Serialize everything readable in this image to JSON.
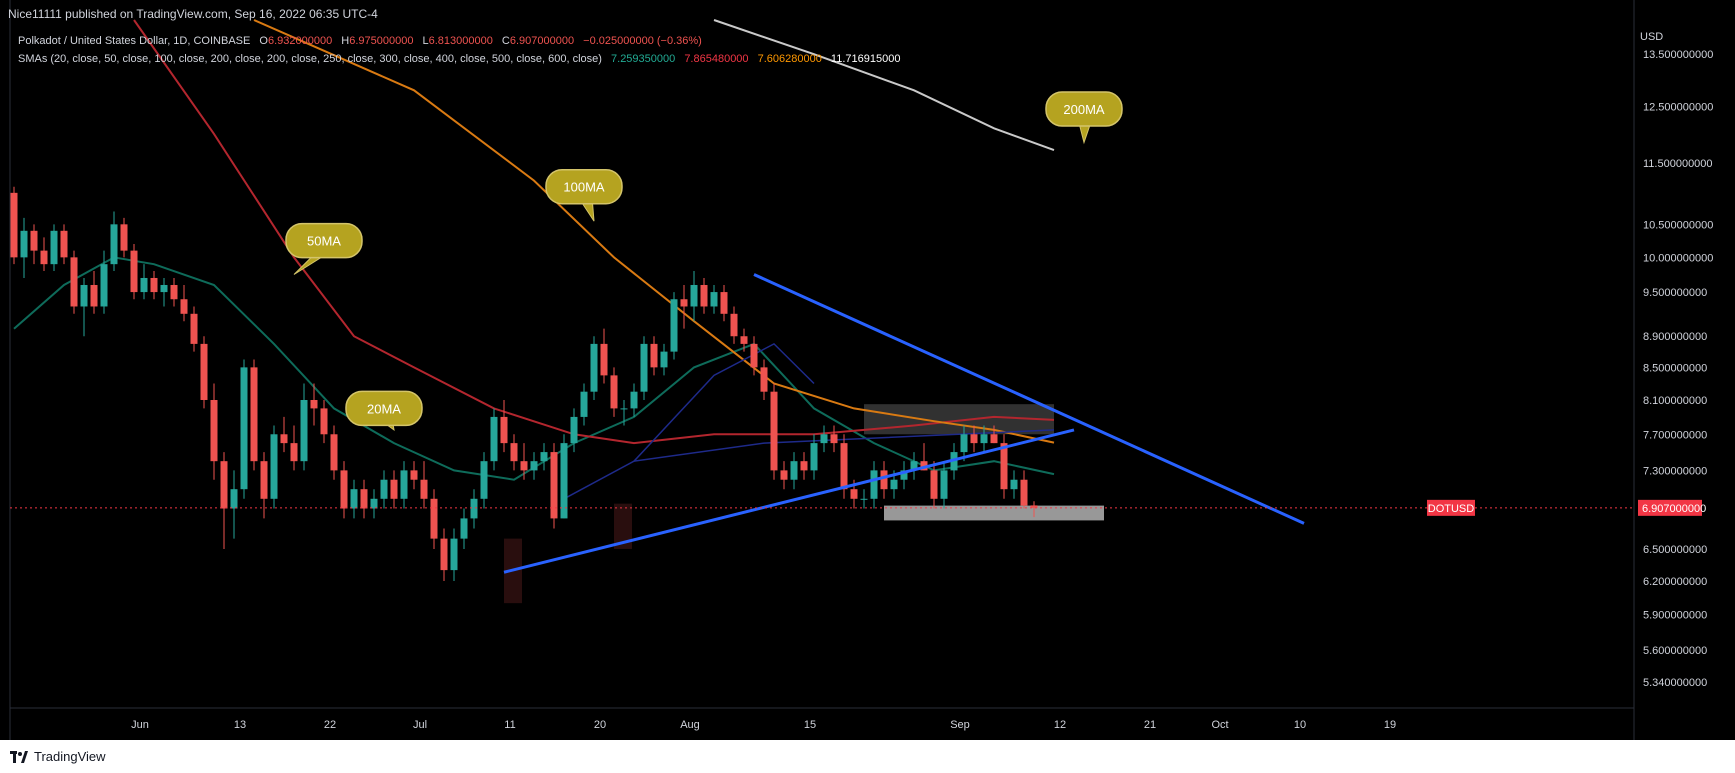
{
  "header": {
    "published": "Nice11111 published on TradingView.com, Sep 16, 2022 06:35 UTC-4",
    "symbol_title": "Polkadot / United States Dollar, 1D, COINBASE",
    "ohlc": {
      "o_label": "O",
      "o": "6.932000000",
      "h_label": "H",
      "h": "6.975000000",
      "l_label": "L",
      "l": "6.813000000",
      "c_label": "C",
      "c": "6.907000000",
      "change": "−0.025000000 (−0.36%)"
    },
    "sma_title": "SMAs (20, close, 50, close, 100, close, 200, close, 200, close, 250, close, 300, close, 400, close, 500, close, 600, close)",
    "sma_values": [
      {
        "value": "7.259350000",
        "color": "#22ab94"
      },
      {
        "value": "7.865480000",
        "color": "#f23645"
      },
      {
        "value": "7.606280000",
        "color": "#ff9800"
      },
      {
        "value": "11.716915000",
        "color": "#ffffff"
      }
    ]
  },
  "footer": {
    "brand": "TradingView",
    "logo_icon": "tradingview-logo-icon"
  },
  "colors": {
    "background": "#000000",
    "up": "#26a69a",
    "down": "#ef5350",
    "sma20": "#0e6b5a",
    "sma50": "#b3262e",
    "sma100": "#d97a12",
    "sma200": "#c9c9c9",
    "trendline": "#2962ff",
    "callout": "#b5a320",
    "price_badge": "#f23645"
  },
  "chart_data": {
    "type": "candlestick",
    "currency": "USD",
    "symbol_label": "DOTUSD",
    "last_price": "6.907000000",
    "y_ticks": [
      "13.500000000",
      "12.500000000",
      "11.500000000",
      "10.500000000",
      "10.000000000",
      "9.500000000",
      "8.900000000",
      "8.500000000",
      "8.100000000",
      "7.700000000",
      "7.300000000",
      "6.500000000",
      "6.200000000",
      "5.900000000",
      "5.600000000",
      "5.340000000"
    ],
    "x_ticks": [
      "Jun",
      "13",
      "22",
      "Jul",
      "11",
      "20",
      "Aug",
      "15",
      "Sep",
      "12",
      "21",
      "Oct",
      "10",
      "19"
    ],
    "ylim": [
      5.2,
      14.2
    ],
    "start_date": "2022-05-23",
    "candles": [
      [
        11.0,
        11.1,
        9.9,
        10.0
      ],
      [
        10.0,
        10.6,
        9.7,
        10.4
      ],
      [
        10.4,
        10.5,
        9.9,
        10.1
      ],
      [
        10.1,
        10.3,
        9.8,
        9.9
      ],
      [
        9.9,
        10.5,
        9.8,
        10.4
      ],
      [
        10.4,
        10.5,
        9.9,
        10.0
      ],
      [
        10.0,
        10.1,
        9.2,
        9.3
      ],
      [
        9.3,
        9.7,
        8.9,
        9.6
      ],
      [
        9.6,
        9.8,
        9.2,
        9.3
      ],
      [
        9.3,
        10.1,
        9.2,
        9.9
      ],
      [
        9.9,
        10.7,
        9.8,
        10.5
      ],
      [
        10.5,
        10.6,
        10.0,
        10.1
      ],
      [
        10.1,
        10.2,
        9.4,
        9.5
      ],
      [
        9.5,
        9.9,
        9.4,
        9.7
      ],
      [
        9.7,
        9.8,
        9.4,
        9.5
      ],
      [
        9.5,
        9.7,
        9.3,
        9.6
      ],
      [
        9.6,
        9.7,
        9.3,
        9.4
      ],
      [
        9.4,
        9.6,
        9.1,
        9.2
      ],
      [
        9.2,
        9.3,
        8.7,
        8.8
      ],
      [
        8.8,
        8.9,
        8.0,
        8.1
      ],
      [
        8.1,
        8.3,
        7.2,
        7.4
      ],
      [
        7.4,
        7.5,
        6.5,
        6.9
      ],
      [
        6.9,
        7.3,
        6.6,
        7.1
      ],
      [
        7.1,
        8.6,
        7.0,
        8.5
      ],
      [
        8.5,
        8.6,
        7.3,
        7.4
      ],
      [
        7.4,
        7.5,
        6.8,
        7.0
      ],
      [
        7.0,
        7.8,
        6.9,
        7.7
      ],
      [
        7.7,
        7.9,
        7.5,
        7.6
      ],
      [
        7.6,
        7.8,
        7.3,
        7.4
      ],
      [
        7.4,
        8.3,
        7.3,
        8.1
      ],
      [
        8.1,
        8.3,
        7.8,
        8.0
      ],
      [
        8.0,
        8.1,
        7.6,
        7.7
      ],
      [
        7.7,
        7.8,
        7.2,
        7.3
      ],
      [
        7.3,
        7.4,
        6.8,
        6.9
      ],
      [
        6.9,
        7.2,
        6.8,
        7.1
      ],
      [
        7.1,
        7.2,
        6.8,
        6.9
      ],
      [
        6.9,
        7.1,
        6.8,
        7.0
      ],
      [
        7.0,
        7.3,
        6.9,
        7.2
      ],
      [
        7.2,
        7.3,
        6.9,
        7.0
      ],
      [
        7.0,
        7.4,
        6.9,
        7.3
      ],
      [
        7.3,
        7.4,
        7.1,
        7.2
      ],
      [
        7.2,
        7.4,
        6.9,
        7.0
      ],
      [
        7.0,
        7.1,
        6.5,
        6.6
      ],
      [
        6.6,
        6.7,
        6.2,
        6.3
      ],
      [
        6.3,
        6.7,
        6.2,
        6.6
      ],
      [
        6.6,
        6.9,
        6.5,
        6.8
      ],
      [
        6.8,
        7.1,
        6.7,
        7.0
      ],
      [
        7.0,
        7.5,
        6.9,
        7.4
      ],
      [
        7.4,
        8.0,
        7.3,
        7.9
      ],
      [
        7.9,
        8.1,
        7.5,
        7.6
      ],
      [
        7.6,
        7.7,
        7.3,
        7.4
      ],
      [
        7.4,
        7.6,
        7.2,
        7.3
      ],
      [
        7.3,
        7.5,
        7.2,
        7.4
      ],
      [
        7.4,
        7.6,
        7.3,
        7.5
      ],
      [
        7.5,
        7.6,
        6.7,
        6.8
      ],
      [
        6.8,
        7.7,
        6.8,
        7.6
      ],
      [
        7.6,
        8.0,
        7.5,
        7.9
      ],
      [
        7.9,
        8.3,
        7.8,
        8.2
      ],
      [
        8.2,
        8.9,
        8.1,
        8.8
      ],
      [
        8.8,
        9.0,
        8.3,
        8.4
      ],
      [
        8.4,
        8.5,
        7.9,
        8.0
      ],
      [
        8.0,
        8.1,
        7.8,
        8.0
      ],
      [
        8.0,
        8.3,
        7.9,
        8.2
      ],
      [
        8.2,
        8.9,
        8.1,
        8.8
      ],
      [
        8.8,
        8.9,
        8.4,
        8.5
      ],
      [
        8.5,
        8.8,
        8.4,
        8.7
      ],
      [
        8.7,
        9.5,
        8.6,
        9.4
      ],
      [
        9.4,
        9.6,
        9.0,
        9.3
      ],
      [
        9.3,
        9.8,
        9.1,
        9.6
      ],
      [
        9.6,
        9.7,
        9.2,
        9.3
      ],
      [
        9.3,
        9.6,
        9.2,
        9.5
      ],
      [
        9.5,
        9.6,
        9.1,
        9.2
      ],
      [
        9.2,
        9.3,
        8.8,
        8.9
      ],
      [
        8.9,
        9.0,
        8.7,
        8.8
      ],
      [
        8.8,
        8.9,
        8.4,
        8.5
      ],
      [
        8.5,
        8.6,
        8.1,
        8.2
      ],
      [
        8.2,
        8.3,
        7.2,
        7.3
      ],
      [
        7.3,
        7.4,
        7.1,
        7.2
      ],
      [
        7.2,
        7.5,
        7.1,
        7.4
      ],
      [
        7.4,
        7.5,
        7.2,
        7.3
      ],
      [
        7.3,
        7.7,
        7.2,
        7.6
      ],
      [
        7.6,
        7.8,
        7.5,
        7.7
      ],
      [
        7.7,
        7.8,
        7.5,
        7.6
      ],
      [
        7.6,
        7.7,
        7.0,
        7.1
      ],
      [
        7.1,
        7.2,
        6.9,
        7.0
      ],
      [
        7.0,
        7.1,
        6.9,
        7.0
      ],
      [
        7.0,
        7.4,
        6.9,
        7.3
      ],
      [
        7.3,
        7.4,
        7.0,
        7.1
      ],
      [
        7.1,
        7.3,
        7.0,
        7.2
      ],
      [
        7.2,
        7.4,
        7.1,
        7.3
      ],
      [
        7.3,
        7.5,
        7.2,
        7.4
      ],
      [
        7.4,
        7.6,
        7.3,
        7.3
      ],
      [
        7.3,
        7.4,
        6.9,
        7.0
      ],
      [
        7.0,
        7.4,
        6.9,
        7.3
      ],
      [
        7.3,
        7.6,
        7.2,
        7.5
      ],
      [
        7.5,
        7.8,
        7.4,
        7.7
      ],
      [
        7.7,
        7.8,
        7.5,
        7.6
      ],
      [
        7.6,
        7.8,
        7.5,
        7.7
      ],
      [
        7.7,
        7.8,
        7.6,
        7.6
      ],
      [
        7.6,
        7.7,
        7.0,
        7.1
      ],
      [
        7.1,
        7.3,
        7.0,
        7.2
      ],
      [
        7.2,
        7.3,
        6.9,
        6.93
      ],
      [
        6.932,
        6.975,
        6.813,
        6.907
      ]
    ],
    "sma_lines": [
      {
        "name": "20MA",
        "points": [
          [
            0,
            9.0
          ],
          [
            5,
            9.6
          ],
          [
            10,
            10.0
          ],
          [
            14,
            9.9
          ],
          [
            20,
            9.6
          ],
          [
            26,
            8.8
          ],
          [
            32,
            8.0
          ],
          [
            38,
            7.6
          ],
          [
            44,
            7.3
          ],
          [
            50,
            7.2
          ],
          [
            56,
            7.6
          ],
          [
            62,
            7.9
          ],
          [
            68,
            8.5
          ],
          [
            74,
            8.8
          ],
          [
            80,
            8.0
          ],
          [
            86,
            7.6
          ],
          [
            92,
            7.3
          ],
          [
            98,
            7.4
          ],
          [
            104,
            7.26
          ]
        ]
      },
      {
        "name": "50MA",
        "points": [
          [
            12,
            14.2
          ],
          [
            20,
            12.0
          ],
          [
            28,
            10.0
          ],
          [
            34,
            8.9
          ],
          [
            40,
            8.5
          ],
          [
            48,
            8.0
          ],
          [
            56,
            7.7
          ],
          [
            62,
            7.6
          ],
          [
            70,
            7.7
          ],
          [
            80,
            7.7
          ],
          [
            90,
            7.8
          ],
          [
            98,
            7.9
          ],
          [
            104,
            7.865
          ]
        ]
      },
      {
        "name": "100MA",
        "points": [
          [
            24,
            14.2
          ],
          [
            40,
            12.8
          ],
          [
            52,
            11.2
          ],
          [
            60,
            10.0
          ],
          [
            68,
            9.1
          ],
          [
            76,
            8.3
          ],
          [
            84,
            8.0
          ],
          [
            92,
            7.85
          ],
          [
            98,
            7.75
          ],
          [
            104,
            7.606
          ]
        ]
      },
      {
        "name": "200MA",
        "points": [
          [
            70,
            14.2
          ],
          [
            80,
            13.5
          ],
          [
            90,
            12.8
          ],
          [
            98,
            12.1
          ],
          [
            104,
            11.717
          ]
        ]
      }
    ],
    "labels": [
      "50MA",
      "100MA",
      "20MA",
      "200MA"
    ]
  }
}
